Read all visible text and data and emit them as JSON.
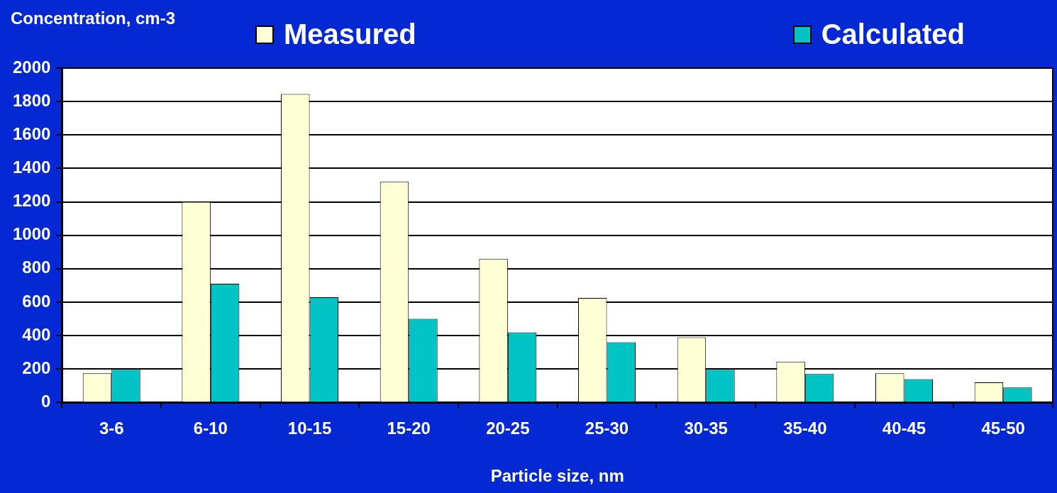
{
  "chart_data": {
    "type": "bar",
    "xlabel": "Particle size, nm",
    "ylabel": "Concentration, cm-3",
    "categories": [
      "3-6",
      "6-10",
      "10-15",
      "15-20",
      "20-25",
      "25-30",
      "30-35",
      "35-40",
      "40-45",
      "45-50"
    ],
    "series": [
      {
        "name": "Measured",
        "color": "#ffffd6",
        "values": [
          175,
          1200,
          1845,
          1320,
          860,
          625,
          390,
          245,
          175,
          120
        ]
      },
      {
        "name": "Calculated",
        "color": "#00c4c4",
        "values": [
          200,
          710,
          630,
          500,
          420,
          360,
          200,
          170,
          140,
          90
        ]
      }
    ],
    "ylim": [
      0,
      2000
    ],
    "yticks": [
      0,
      200,
      400,
      600,
      800,
      1000,
      1200,
      1400,
      1600,
      1800,
      2000
    ],
    "grid": "y",
    "legend": "top"
  }
}
